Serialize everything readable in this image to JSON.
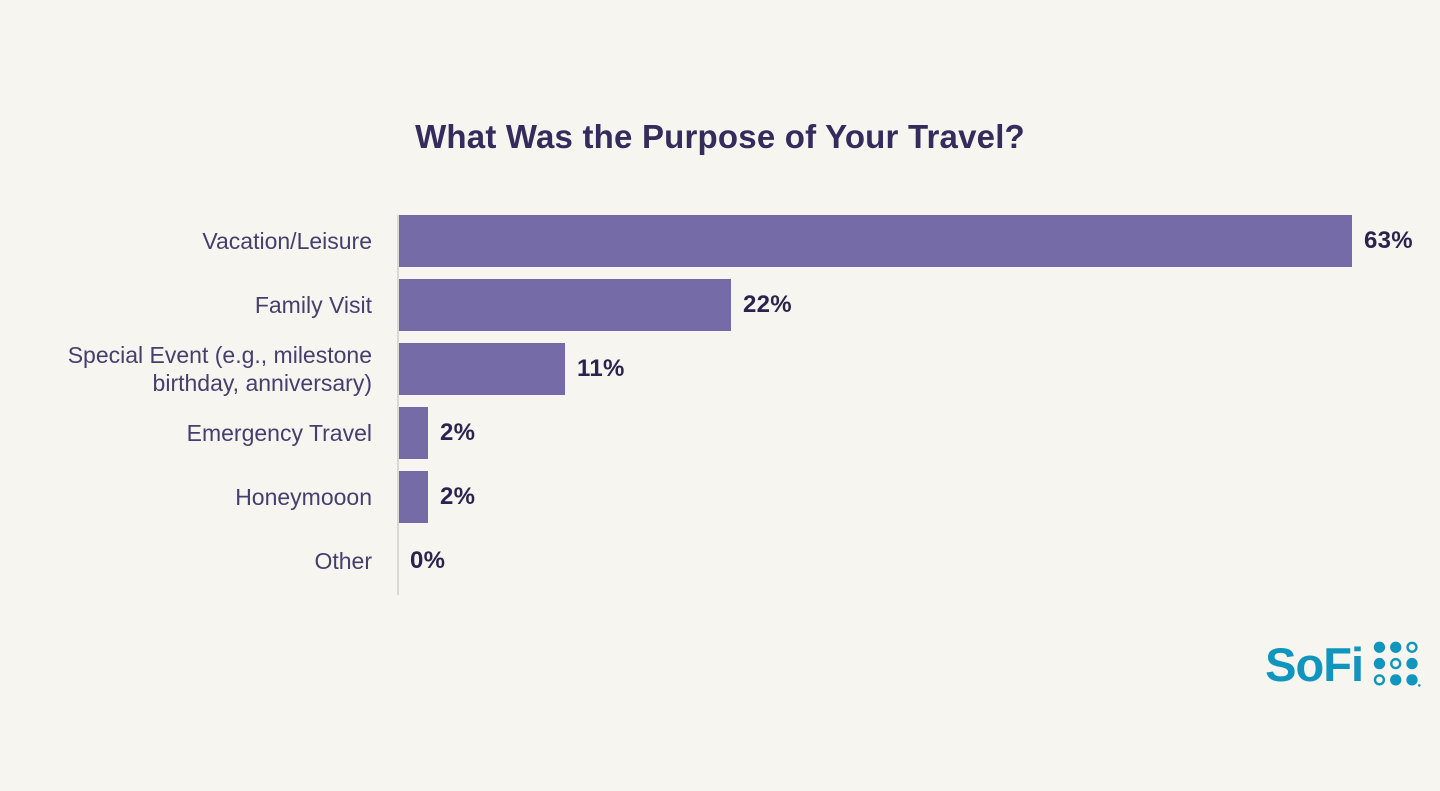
{
  "chart_data": {
    "type": "bar",
    "orientation": "horizontal",
    "title": "What Was the Purpose of Your Travel?",
    "categories": [
      "Vacation/Leisure",
      "Family Visit",
      "Special Event (e.g., milestone birthday, anniversary)",
      "Emergency Travel",
      "Honeymooon",
      "Other"
    ],
    "values": [
      63,
      22,
      11,
      2,
      2,
      0
    ],
    "value_labels": [
      "63%",
      "22%",
      "11%",
      "2%",
      "2%",
      "0%"
    ],
    "xlabel": "",
    "ylabel": "",
    "xlim": [
      0,
      63
    ],
    "grid": false,
    "legend": false,
    "bar_color": "#756CA7",
    "background_color": "#F7F5EF",
    "title_color": "#332C5C",
    "label_color": "#453F6E",
    "value_color": "#2A234D",
    "axis_line_color": "#DCD9D2"
  },
  "branding": {
    "logo_text": "SoFi",
    "logo_color": "#1095BF",
    "logo_dots_icon": "sofi-dot-grid",
    "logo_dot_pattern": [
      [
        "filled",
        "filled",
        "ring"
      ],
      [
        "filled",
        "ring",
        "filled"
      ],
      [
        "ring",
        "filled",
        "filled"
      ]
    ]
  }
}
